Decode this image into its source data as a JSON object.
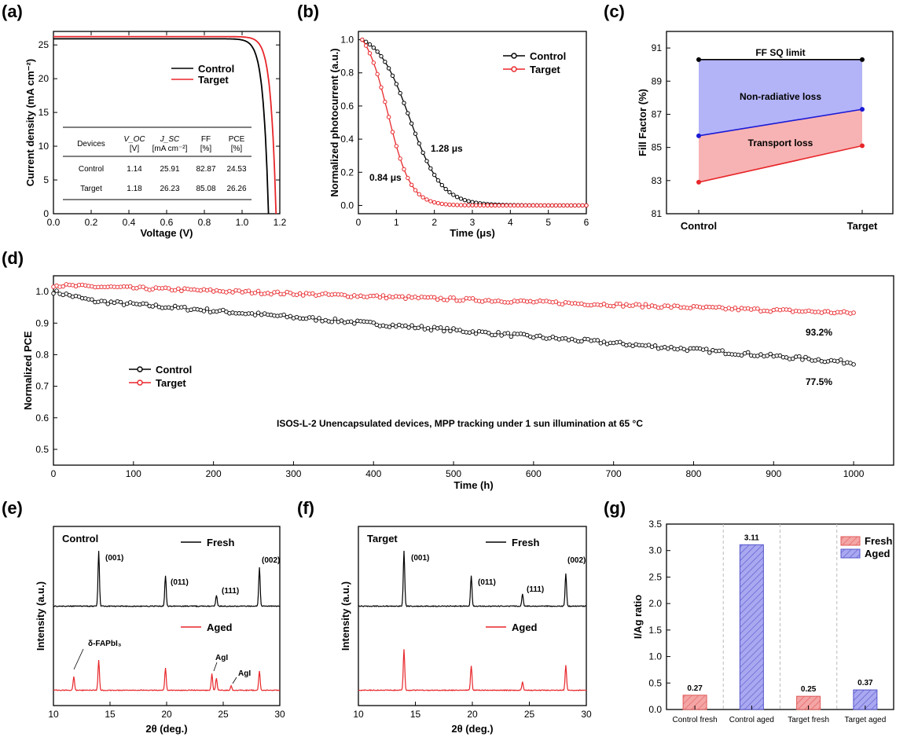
{
  "panels": {
    "a": "(a)",
    "b": "(b)",
    "c": "(c)",
    "d": "(d)",
    "e": "(e)",
    "f": "(f)",
    "g": "(g)"
  },
  "colors": {
    "control": "#000000",
    "target": "#e8262a",
    "fresh_bar": "#f4a5a5",
    "aged_bar": "#a9a8f0",
    "nonrad": "#b3b3f7",
    "transport": "#f7b3b3",
    "blue_line": "#1a1ad6"
  },
  "chart_data": [
    {
      "id": "a",
      "type": "line",
      "xlabel": "Voltage (V)",
      "ylabel": "Current density (mA cm⁻²)",
      "xlim": [
        0,
        1.2
      ],
      "ylim": [
        0,
        27
      ],
      "xticks": [
        "0.0",
        "0.2",
        "0.4",
        "0.6",
        "0.8",
        "1.0",
        "1.2"
      ],
      "yticks": [
        "0",
        "5",
        "10",
        "15",
        "20",
        "25"
      ],
      "series": [
        {
          "name": "Control",
          "voc": 1.14,
          "jsc": 25.91
        },
        {
          "name": "Target",
          "voc": 1.18,
          "jsc": 26.23
        }
      ],
      "table": {
        "headers": [
          "Devices",
          "V_OC [V]",
          "J_SC [mA cm⁻²]",
          "FF [%]",
          "PCE [%]"
        ],
        "rows": [
          [
            "Control",
            "1.14",
            "25.91",
            "82.87",
            "24.53"
          ],
          [
            "Target",
            "1.18",
            "26.23",
            "85.08",
            "26.26"
          ]
        ]
      }
    },
    {
      "id": "b",
      "type": "line",
      "xlabel": "Time (μs)",
      "ylabel": "Normalized photocurrent (a.u.)",
      "xlim": [
        0,
        6
      ],
      "ylim": [
        -0.05,
        1.05
      ],
      "xticks": [
        "0",
        "1",
        "2",
        "3",
        "4",
        "5",
        "6"
      ],
      "yticks": [
        "0.0",
        "0.2",
        "0.4",
        "0.6",
        "0.8",
        "1.0"
      ],
      "series": [
        {
          "name": "Control",
          "tau_label": "1.28 μs"
        },
        {
          "name": "Target",
          "tau_label": "0.84 μs"
        }
      ]
    },
    {
      "id": "c",
      "type": "line",
      "xlabel": "",
      "ylabel": "Fill Factor (%)",
      "categories": [
        "Control",
        "Target"
      ],
      "ylim": [
        81,
        92
      ],
      "yticks": [
        "81",
        "83",
        "85",
        "87",
        "89",
        "91"
      ],
      "series": [
        {
          "name": "FF SQ limit",
          "values": [
            90.3,
            90.3
          ]
        },
        {
          "name": "",
          "values": [
            85.7,
            87.3
          ]
        },
        {
          "name": "",
          "values": [
            82.9,
            85.1
          ]
        }
      ],
      "regions": [
        "Non-radiative loss",
        "Transport loss"
      ]
    },
    {
      "id": "d",
      "type": "scatter",
      "xlabel": "Time (h)",
      "ylabel": "Normalized PCE",
      "xlim": [
        0,
        1050
      ],
      "ylim": [
        0.45,
        1.05
      ],
      "xticks": [
        "0",
        "100",
        "200",
        "300",
        "400",
        "500",
        "600",
        "700",
        "800",
        "900",
        "1000"
      ],
      "yticks": [
        "0.5",
        "0.6",
        "0.7",
        "0.8",
        "0.9",
        "1.0"
      ],
      "series": [
        {
          "name": "Control",
          "final_label": "77.5%",
          "start": 1.0,
          "end": 0.775
        },
        {
          "name": "Target",
          "final_label": "93.2%",
          "start": 1.02,
          "end": 0.932
        }
      ],
      "annotation": "ISOS-L-2   Unencapsulated devices, MPP tracking under 1 sun illumination at 65 °C"
    },
    {
      "id": "e",
      "type": "line",
      "xlabel": "2θ (deg.)",
      "ylabel": "Intensity (a.u.)",
      "xlim": [
        10,
        30
      ],
      "xticks": [
        "10",
        "15",
        "20",
        "25",
        "30"
      ],
      "sample": "Control",
      "series": [
        {
          "name": "Fresh",
          "peaks": [
            [
              14.0,
              1.0
            ],
            [
              19.9,
              0.55
            ],
            [
              24.4,
              0.2
            ],
            [
              28.2,
              0.7
            ]
          ]
        },
        {
          "name": "Aged",
          "peaks": [
            [
              11.8,
              0.25
            ],
            [
              14.0,
              0.55
            ],
            [
              19.9,
              0.4
            ],
            [
              24.0,
              0.3
            ],
            [
              24.4,
              0.22
            ],
            [
              25.7,
              0.08
            ],
            [
              28.2,
              0.35
            ]
          ]
        }
      ],
      "peak_labels": [
        "(001)",
        "(011)",
        "(111)",
        "(002)"
      ],
      "aged_labels": [
        "δ-FAPbI₃",
        "AgI",
        "AgI"
      ]
    },
    {
      "id": "f",
      "type": "line",
      "xlabel": "2θ (deg.)",
      "ylabel": "Intensity (a.u.)",
      "xlim": [
        10,
        30
      ],
      "xticks": [
        "10",
        "15",
        "20",
        "25",
        "30"
      ],
      "sample": "Target",
      "series": [
        {
          "name": "Fresh",
          "peaks": [
            [
              14.0,
              1.0
            ],
            [
              19.9,
              0.55
            ],
            [
              24.4,
              0.22
            ],
            [
              28.2,
              0.6
            ]
          ]
        },
        {
          "name": "Aged",
          "peaks": [
            [
              14.0,
              0.75
            ],
            [
              19.9,
              0.45
            ],
            [
              24.4,
              0.15
            ],
            [
              28.2,
              0.45
            ]
          ]
        }
      ],
      "peak_labels": [
        "(001)",
        "(011)",
        "(111)",
        "(002)"
      ]
    },
    {
      "id": "g",
      "type": "bar",
      "xlabel": "",
      "ylabel": "I/Ag ratio",
      "categories": [
        "Control fresh",
        "Control aged",
        "Target fresh",
        "Target aged"
      ],
      "values": [
        0.27,
        3.11,
        0.25,
        0.37
      ],
      "value_labels": [
        "0.27",
        "3.11",
        "0.25",
        "0.37"
      ],
      "series_of_bar": [
        "Fresh",
        "Aged",
        "Fresh",
        "Aged"
      ],
      "legend": [
        "Fresh",
        "Aged"
      ],
      "ylim": [
        0,
        3.5
      ],
      "yticks": [
        "0.0",
        "0.5",
        "1.0",
        "1.5",
        "2.0",
        "2.5",
        "3.0",
        "3.5"
      ]
    }
  ]
}
